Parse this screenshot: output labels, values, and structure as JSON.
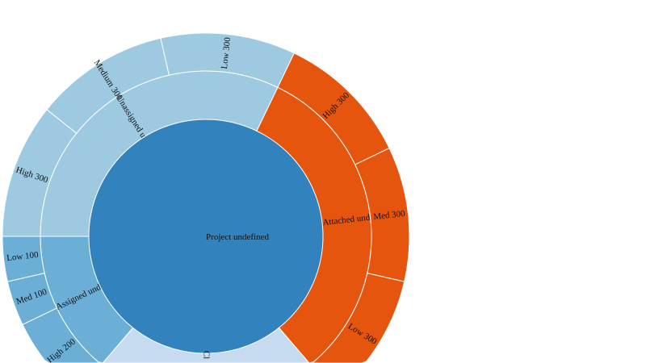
{
  "root": {
    "label": "Project undefined",
    "color": "#3182bd"
  },
  "groups": [
    {
      "label": "Unassigned u",
      "value": 900,
      "color": "#9ecae1",
      "children": [
        {
          "label": "High 300",
          "value": 300
        },
        {
          "label": "Medium 300",
          "value": 300
        },
        {
          "label": "Low 300",
          "value": 300
        }
      ]
    },
    {
      "label": "Attached und",
      "value": 900,
      "color": "#e6550d",
      "children": [
        {
          "label": "High 300",
          "value": 300
        },
        {
          "label": "Med 300",
          "value": 300
        },
        {
          "label": "Low 300",
          "value": 300
        }
      ]
    },
    {
      "label": "Cl",
      "value": 600,
      "color": "#c6dbef",
      "children": []
    },
    {
      "label": "Assigned und",
      "value": 400,
      "color": "#6baed6",
      "children": [
        {
          "label": "High 200",
          "value": 200
        },
        {
          "label": "Med 100",
          "value": 100
        },
        {
          "label": "Low 100",
          "value": 100
        }
      ]
    }
  ]
}
